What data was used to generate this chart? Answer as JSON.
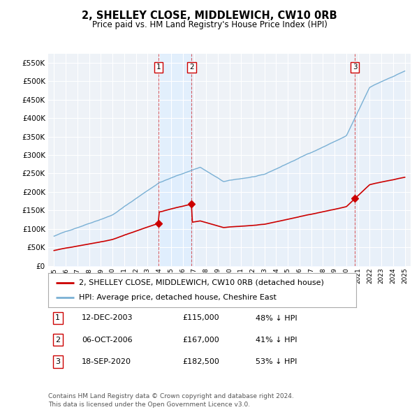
{
  "title": "2, SHELLEY CLOSE, MIDDLEWICH, CW10 0RB",
  "subtitle": "Price paid vs. HM Land Registry's House Price Index (HPI)",
  "legend_line1": "2, SHELLEY CLOSE, MIDDLEWICH, CW10 0RB (detached house)",
  "legend_line2": "HPI: Average price, detached house, Cheshire East",
  "footnote": "Contains HM Land Registry data © Crown copyright and database right 2024.\nThis data is licensed under the Open Government Licence v3.0.",
  "transactions": [
    {
      "num": 1,
      "date": "12-DEC-2003",
      "price": 115000,
      "pct": "48% ↓ HPI",
      "x": 2003.95
    },
    {
      "num": 2,
      "date": "06-OCT-2006",
      "price": 167000,
      "pct": "41% ↓ HPI",
      "x": 2006.77
    },
    {
      "num": 3,
      "date": "18-SEP-2020",
      "price": 182500,
      "pct": "53% ↓ HPI",
      "x": 2020.72
    }
  ],
  "property_color": "#cc0000",
  "hpi_color": "#7ab0d4",
  "hpi_fill_color": "#ddeeff",
  "shade_color": "#ddeeff",
  "background_color": "#ffffff",
  "plot_bg_color": "#eef2f7",
  "ylim": [
    0,
    575000
  ],
  "yticks": [
    0,
    50000,
    100000,
    150000,
    200000,
    250000,
    300000,
    350000,
    400000,
    450000,
    500000,
    550000
  ],
  "xlim": [
    1994.5,
    2025.5
  ],
  "xticks": [
    1995,
    1996,
    1997,
    1998,
    1999,
    2000,
    2001,
    2002,
    2003,
    2004,
    2005,
    2006,
    2007,
    2008,
    2009,
    2010,
    2011,
    2012,
    2013,
    2014,
    2015,
    2016,
    2017,
    2018,
    2019,
    2020,
    2021,
    2022,
    2023,
    2024,
    2025
  ]
}
